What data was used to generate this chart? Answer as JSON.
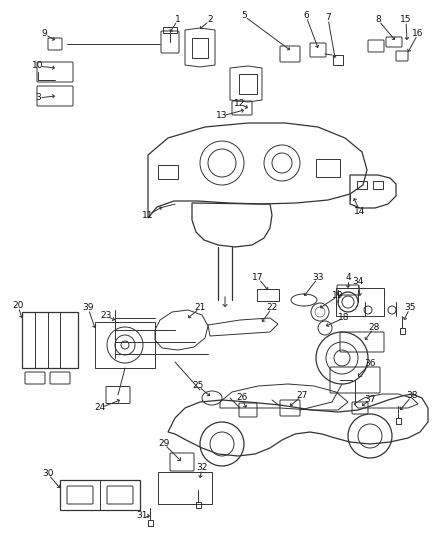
{
  "background_color": "#ffffff",
  "line_color": "#333333",
  "text_color": "#111111",
  "fig_width": 4.38,
  "fig_height": 5.33,
  "dpi": 100
}
